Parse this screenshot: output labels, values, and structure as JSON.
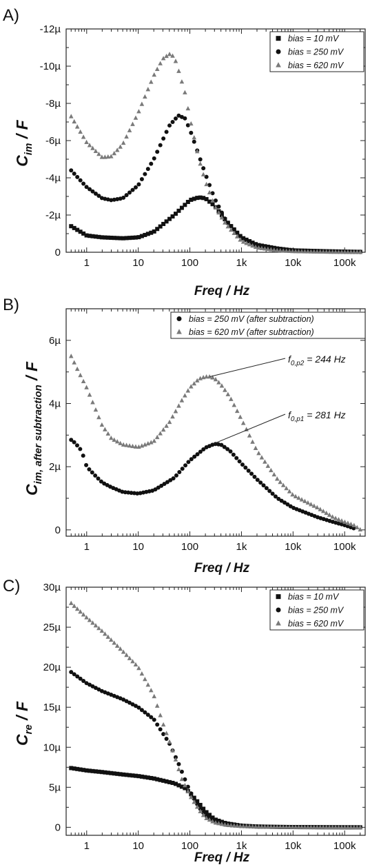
{
  "panels": [
    {
      "label": "A)",
      "ylabel_main": "C",
      "ylabel_sub": "im",
      "ylabel_tail": " / F",
      "xlabel": "Freq / Hz"
    },
    {
      "label": "B)",
      "ylabel_main": "C",
      "ylabel_sub": "im, after subtraction",
      "ylabel_tail": " / F",
      "xlabel": "Freq / Hz"
    },
    {
      "label": "C)",
      "ylabel_main": "C",
      "ylabel_sub": "re",
      "ylabel_tail": " / F",
      "xlabel": "Freq / Hz"
    }
  ],
  "annotations": [
    {
      "base": "f",
      "sub": "0,p2",
      "text": " = 244 Hz",
      "x": 244,
      "y": 4.85e-06
    },
    {
      "base": "f",
      "sub": "0,p1",
      "text": " = 281 Hz",
      "x": 281,
      "y": 2.72e-06
    }
  ],
  "colors": {
    "bias_10": "#111111",
    "bias_250": "#111111",
    "bias_620": "#7a7a7a",
    "axis": "#222222"
  },
  "chart_data": [
    {
      "type": "scatter",
      "xscale": "log",
      "xlim": [
        0.4,
        250000
      ],
      "ylim": [
        0,
        -1.2e-05
      ],
      "xticks": [
        1,
        10,
        100,
        1000,
        10000,
        100000
      ],
      "xticklabels": [
        "1",
        "10",
        "100",
        "1k",
        "10k",
        "100k"
      ],
      "yticks": [
        0,
        -2e-06,
        -4e-06,
        -6e-06,
        -8e-06,
        -1e-05,
        -1.2e-05
      ],
      "yticklabels": [
        "0",
        "-2µ",
        "-4µ",
        "-6µ",
        "-8µ",
        "-10µ",
        "-12µ"
      ],
      "xlabel": "Freq / Hz",
      "ylabel": "C_im / F",
      "legend_position": "top-right",
      "series": [
        {
          "name": "bias = 10 mV",
          "marker": "square",
          "x": [
            0.5,
            1,
            2,
            5,
            10,
            20,
            50,
            100,
            150,
            200,
            300,
            500,
            1000,
            2000,
            5000,
            10000,
            50000,
            200000
          ],
          "y": [
            -1.4e-06,
            -9e-07,
            -8e-07,
            -7.5e-07,
            -8e-07,
            -1.1e-06,
            -2e-06,
            -2.8e-06,
            -2.95e-06,
            -2.9e-06,
            -2.5e-06,
            -1.7e-06,
            -8e-07,
            -4e-07,
            -2e-07,
            -1e-07,
            -5e-08,
            -2e-08
          ]
        },
        {
          "name": "bias = 250 mV",
          "marker": "circle",
          "x": [
            0.5,
            1,
            2,
            3,
            5,
            10,
            20,
            40,
            60,
            80,
            100,
            150,
            200,
            300,
            500,
            1000,
            2000,
            5000,
            10000,
            50000,
            200000
          ],
          "y": [
            -4.4e-06,
            -3.5e-06,
            -2.9e-06,
            -2.8e-06,
            -2.9e-06,
            -3.6e-06,
            -5e-06,
            -6.8e-06,
            -7.35e-06,
            -7.2e-06,
            -6.6e-06,
            -5.2e-06,
            -4.2e-06,
            -2.9e-06,
            -1.7e-06,
            -8e-07,
            -3.5e-07,
            -1.5e-07,
            -8e-08,
            -3e-08,
            -1e-08
          ]
        },
        {
          "name": "bias = 620 mV",
          "marker": "triangle",
          "x": [
            0.5,
            1,
            2,
            3,
            5,
            10,
            20,
            30,
            40,
            50,
            60,
            80,
            100,
            150,
            200,
            300,
            500,
            1000,
            2000,
            5000,
            10000,
            50000,
            200000
          ],
          "y": [
            -7.3e-06,
            -5.9e-06,
            -5.1e-06,
            -5.15e-06,
            -5.8e-06,
            -7.5e-06,
            -9.5e-06,
            -1.04e-05,
            -1.065e-05,
            -1.05e-05,
            -9.8e-06,
            -8.6e-06,
            -7.2e-06,
            -5e-06,
            -3.8e-06,
            -2.5e-06,
            -1.5e-06,
            -6e-07,
            -2.5e-07,
            -1e-07,
            -5e-08,
            -2e-08,
            -1e-08
          ]
        }
      ]
    },
    {
      "type": "scatter",
      "xscale": "log",
      "xlim": [
        0.4,
        250000
      ],
      "ylim": [
        -2e-07,
        7e-06
      ],
      "xticks": [
        1,
        10,
        100,
        1000,
        10000,
        100000
      ],
      "xticklabels": [
        "1",
        "10",
        "100",
        "1k",
        "10k",
        "100k"
      ],
      "yticks": [
        0,
        2e-06,
        4e-06,
        6e-06
      ],
      "yticklabels": [
        "0",
        "2µ",
        "4µ",
        "6µ"
      ],
      "xlabel": "Freq / Hz",
      "ylabel": "C_im, after subtraction / F",
      "legend_position": "top-right",
      "series": [
        {
          "name": "bias = 250 mV (after subtraction)",
          "marker": "circle",
          "x": [
            0.5,
            0.6,
            0.8,
            1,
            1.5,
            2,
            3,
            5,
            10,
            20,
            50,
            100,
            200,
            300,
            400,
            600,
            1000,
            2000,
            5000,
            10000,
            30000,
            60000,
            100000,
            150000
          ],
          "y": [
            2.85e-06,
            2.75e-06,
            2.5e-06,
            2e-06,
            1.7e-06,
            1.5e-06,
            1.35e-06,
            1.2e-06,
            1.15e-06,
            1.25e-06,
            1.65e-06,
            2.2e-06,
            2.6e-06,
            2.72e-06,
            2.7e-06,
            2.5e-06,
            2.1e-06,
            1.6e-06,
            1e-06,
            7e-07,
            4e-07,
            2.5e-07,
            1.5e-07,
            5e-08
          ]
        },
        {
          "name": "bias = 620 mV (after subtraction)",
          "marker": "triangle",
          "x": [
            0.5,
            0.7,
            1,
            1.5,
            2,
            3,
            5,
            10,
            20,
            40,
            70,
            100,
            150,
            200,
            244,
            300,
            400,
            600,
            1000,
            2000,
            5000,
            10000,
            30000,
            60000,
            100000,
            150000,
            200000
          ],
          "y": [
            5.5e-06,
            5e-06,
            4.5e-06,
            3.8e-06,
            3.3e-06,
            2.9e-06,
            2.7e-06,
            2.62e-06,
            2.8e-06,
            3.4e-06,
            4.1e-06,
            4.5e-06,
            4.78e-06,
            4.85e-06,
            4.85e-06,
            4.8e-06,
            4.6e-06,
            4.2e-06,
            3.5e-06,
            2.5e-06,
            1.6e-06,
            1.1e-06,
            7e-07,
            4e-07,
            2.5e-07,
            1.5e-07,
            1e-08
          ]
        }
      ]
    },
    {
      "type": "scatter",
      "xscale": "log",
      "xlim": [
        0.4,
        250000
      ],
      "ylim": [
        -1e-06,
        3e-05
      ],
      "xticks": [
        1,
        10,
        100,
        1000,
        10000,
        100000
      ],
      "xticklabels": [
        "1",
        "10",
        "100",
        "1k",
        "10k",
        "100k"
      ],
      "yticks": [
        0,
        5e-06,
        1e-05,
        1.5e-05,
        2e-05,
        2.5e-05,
        3e-05
      ],
      "yticklabels": [
        "0",
        "5µ",
        "10µ",
        "15µ",
        "20µ",
        "25µ",
        "30µ"
      ],
      "xlabel": "Freq / Hz",
      "ylabel": "C_re / F",
      "legend_position": "top-right",
      "series": [
        {
          "name": "bias = 10 mV",
          "marker": "square",
          "x": [
            0.5,
            1,
            2,
            5,
            10,
            20,
            50,
            80,
            100,
            150,
            200,
            300,
            500,
            1000,
            2000,
            5000,
            10000,
            50000,
            200000
          ],
          "y": [
            7.4e-06,
            7.1e-06,
            6.9e-06,
            6.6e-06,
            6.4e-06,
            6.1e-06,
            5.5e-06,
            4.9e-06,
            4.3e-06,
            3e-06,
            2e-06,
            1e-06,
            5e-07,
            2e-07,
            1e-07,
            5e-08,
            3e-08,
            1e-08,
            0
          ]
        },
        {
          "name": "bias = 250 mV",
          "marker": "circle",
          "x": [
            0.5,
            1,
            2,
            5,
            10,
            20,
            40,
            60,
            80,
            100,
            150,
            200,
            300,
            500,
            1000,
            2000,
            5000,
            10000,
            50000,
            200000
          ],
          "y": [
            1.94e-05,
            1.8e-05,
            1.7e-05,
            1.6e-05,
            1.5e-05,
            1.35e-05,
            1.05e-05,
            8e-06,
            6e-06,
            4.5e-06,
            2.5e-06,
            1.5e-06,
            7e-07,
            3e-07,
            1.5e-07,
            8e-08,
            5e-08,
            3e-08,
            1e-08,
            0
          ]
        },
        {
          "name": "bias = 620 mV",
          "marker": "triangle",
          "x": [
            0.5,
            1,
            2,
            5,
            10,
            20,
            30,
            50,
            70,
            100,
            150,
            200,
            300,
            500,
            1000,
            2000,
            5000,
            10000,
            50000,
            200000
          ],
          "y": [
            2.8e-05,
            2.62e-05,
            2.45e-05,
            2.2e-05,
            2e-05,
            1.65e-05,
            1.3e-05,
            9e-06,
            6e-06,
            4e-06,
            2.2e-06,
            1.2e-06,
            6e-07,
            3e-07,
            1.5e-07,
            8e-08,
            5e-08,
            3e-08,
            1e-08,
            0
          ]
        }
      ]
    }
  ]
}
